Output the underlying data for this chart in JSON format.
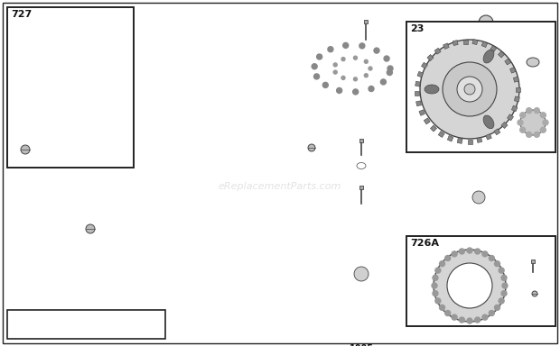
{
  "bg_color": "#ffffff",
  "line_color": "#444444",
  "watermark": "eReplacementParts.com",
  "fig_w": 6.2,
  "fig_h": 3.84,
  "dpi": 100
}
